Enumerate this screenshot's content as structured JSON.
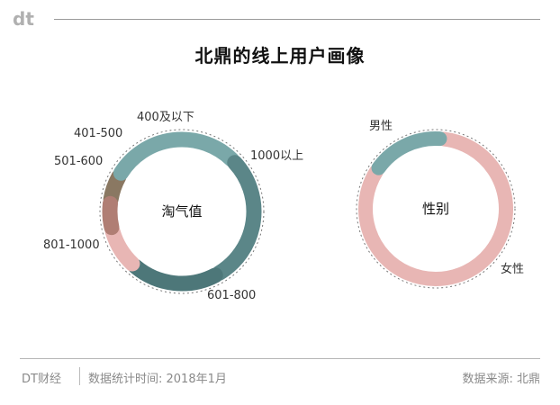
{
  "header": {
    "logo_text": "dt",
    "title": "北鼎的线上用户画像"
  },
  "colors": {
    "teal": "#7aa8a9",
    "dark_teal": "#4d7779",
    "slate_teal": "#5b8688",
    "pink": "#e8b6b4",
    "rose_brown": "#b07e74",
    "brown": "#8a7862",
    "dotted": "#777777"
  },
  "chart_data": [
    {
      "type": "donut",
      "center_label": "淘气值",
      "segments": [
        {
          "name": "400及以下",
          "share": 6,
          "color": "#8a7862"
        },
        {
          "name": "1000以上",
          "share": 28,
          "color": "#7aa8a9"
        },
        {
          "name": "601-800",
          "share": 28,
          "color": "#5b8688"
        },
        {
          "name": "801-1000",
          "share": 19,
          "color": "#4d7779"
        },
        {
          "name": "501-600",
          "share": 9,
          "color": "#e8b6b4"
        },
        {
          "name": "401-500",
          "share": 6,
          "color": "#b07e74"
        }
      ]
    },
    {
      "type": "donut",
      "center_label": "性别",
      "segments": [
        {
          "name": "女性",
          "share": 83,
          "color": "#e8b6b4"
        },
        {
          "name": "男性",
          "share": 17,
          "color": "#7aa8a9"
        }
      ]
    }
  ],
  "footer": {
    "source_left": "DT财经",
    "date_note": "数据统计时间: 2018年1月",
    "source_right": "数据来源: 北鼎"
  }
}
